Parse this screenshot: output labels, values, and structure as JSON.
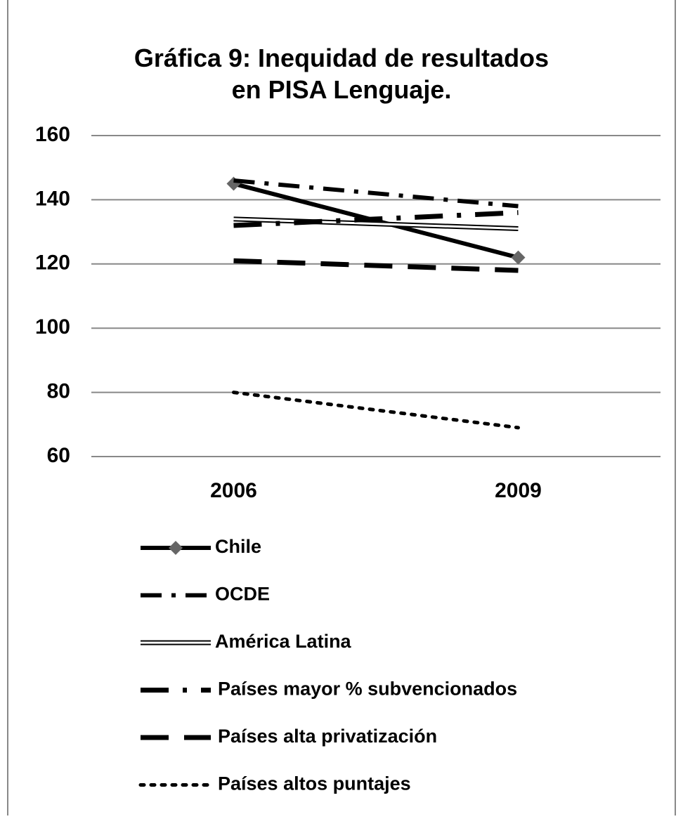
{
  "chart_data": {
    "type": "line",
    "title": "Gráfica 9: Inequidad de resultados en PISA Lenguaje.",
    "categories": [
      "2006",
      "2009"
    ],
    "series": [
      {
        "name": "Chile",
        "color": "#000000",
        "style": "solid",
        "marker": "diamond",
        "marker_color": "#666666",
        "values": [
          145,
          122
        ]
      },
      {
        "name": "OCDE",
        "color": "#000000",
        "style": "dash-dot",
        "values": [
          146,
          138
        ]
      },
      {
        "name": "América Latina",
        "color": "#000000",
        "style": "double",
        "values": [
          134,
          131
        ]
      },
      {
        "name": "Países mayor % subvencionados",
        "color": "#000000",
        "style": "long-dash-dot",
        "values": [
          132,
          136
        ]
      },
      {
        "name": "Países alta privatización",
        "color": "#000000",
        "style": "long-dash",
        "values": [
          121,
          118
        ]
      },
      {
        "name": "Países altos puntajes",
        "color": "#000000",
        "style": "dot",
        "values": [
          80,
          69
        ]
      }
    ],
    "ylim": [
      60,
      160
    ],
    "yticks": [
      60,
      80,
      100,
      120,
      140,
      160
    ],
    "grid": true,
    "legend": "bottom"
  }
}
